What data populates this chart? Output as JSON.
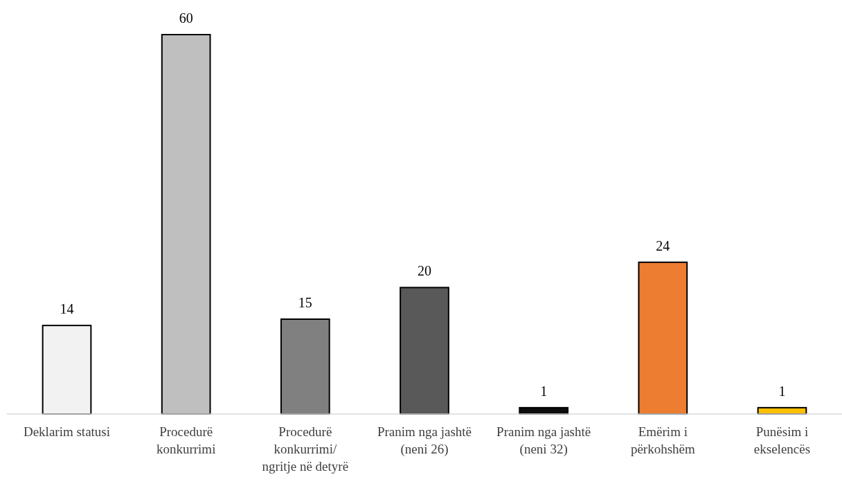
{
  "chart_data": {
    "type": "bar",
    "categories": [
      "Deklarim statusi",
      "Procedurë konkurrimi",
      "Procedurë konkurrimi/ ngritje në detyrë",
      "Pranim nga jashtë (neni 26)",
      "Pranim nga jashtë (neni 32)",
      "Emërim i përkohshëm",
      "Punësim i ekselencës"
    ],
    "values": [
      14,
      60,
      15,
      20,
      1,
      24,
      1
    ],
    "colors": [
      "#f2f2f2",
      "#bfbfbf",
      "#808080",
      "#595959",
      "#0d0d0d",
      "#ed7d31",
      "#ffc000"
    ],
    "data_labels": true
  }
}
